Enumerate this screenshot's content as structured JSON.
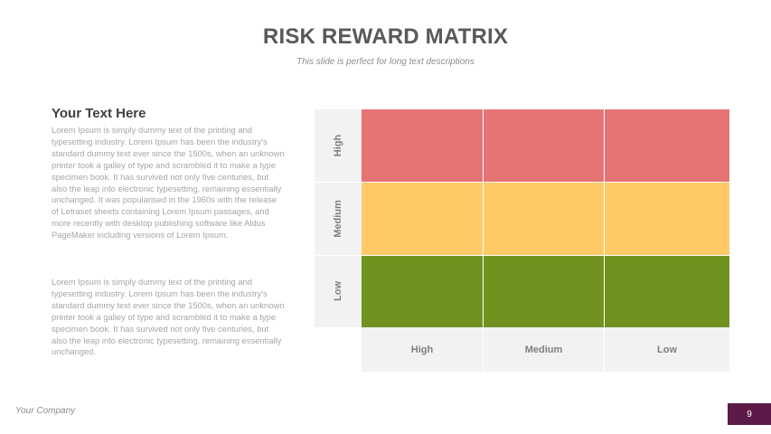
{
  "slide": {
    "title": "RISK REWARD MATRIX",
    "subtitle": "This slide is perfect for long text descriptions"
  },
  "text_block": {
    "heading": "Your Text Here",
    "paragraph_1": "Lorem Ipsum is simply dummy text of the printing and typesetting industry. Lorem Ipsum has been the industry's standard dummy text ever since the 1500s, when an unknown printer took a galley of type and scrambled it to make a type specimen book. It has survived not only five centuries, but also the leap into electronic typesetting, remaining essentially unchanged. It was popularised in the 1960s with the release of Letraset sheets containing Lorem Ipsum passages, and more recently with desktop publishing software like Aldus PageMaker including versions of Lorem Ipsum.",
    "paragraph_2": "Lorem Ipsum is simply dummy text of the printing and typesetting industry. Lorem Ipsum has been the industry's standard dummy text ever since the 1500s, when an unknown printer took a galley of type and scrambled it to make a type specimen book. It has survived not only five centuries, but also the leap into electronic typesetting, remaining essentially unchanged."
  },
  "matrix": {
    "row_labels": [
      "High",
      "Medium",
      "Low"
    ],
    "column_labels": [
      "High",
      "Medium",
      "Low"
    ],
    "row_colors": [
      "#e57373",
      "#ffca66",
      "#70921f"
    ]
  },
  "footer": {
    "company": "Your Company",
    "page_number": "9"
  }
}
